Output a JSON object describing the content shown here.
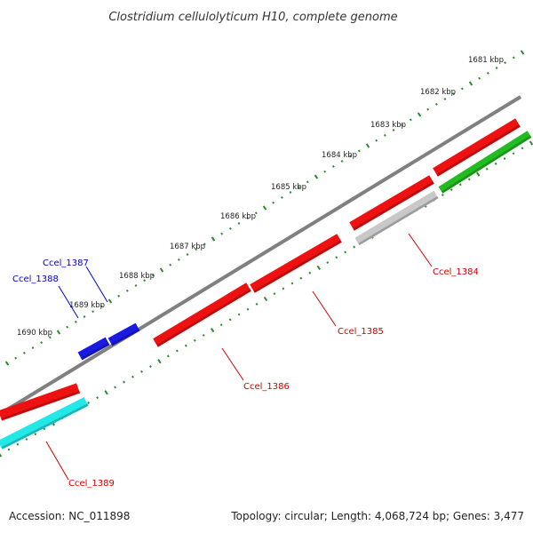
{
  "title": "Clostridium cellulolyticum H10, complete genome",
  "accession": "Accession: NC_011898",
  "summary": "Topology: circular; Length: 4,068,724 bp; Genes: 3,477",
  "colors": {
    "backbone": "#808080",
    "dots": "#2e8b2e",
    "red_gene": "#ee1111",
    "blue_gene": "#1a1ae0",
    "cyan_gene": "#22e8e8",
    "green_gene": "#22bb22",
    "gray_gene": "#c8c8c8",
    "red_label": "#cc0000",
    "blue_label": "#0000cc"
  },
  "ticks": [
    {
      "label": "1681 kbp"
    },
    {
      "label": "1682 kbp"
    },
    {
      "label": "1683 kbp"
    },
    {
      "label": "1684 kbp"
    },
    {
      "label": "1685 kbp"
    },
    {
      "label": "1686 kbp"
    },
    {
      "label": "1687 kbp"
    },
    {
      "label": "1688 kbp"
    },
    {
      "label": "1689 kbp"
    },
    {
      "label": "1690 kbp"
    }
  ],
  "gene_labels": [
    {
      "name": "Ccel_1384",
      "color": "red"
    },
    {
      "name": "Ccel_1385",
      "color": "red"
    },
    {
      "name": "Ccel_1386",
      "color": "red"
    },
    {
      "name": "Ccel_1387",
      "color": "blue"
    },
    {
      "name": "Ccel_1388",
      "color": "blue"
    },
    {
      "name": "Ccel_1389",
      "color": "red"
    }
  ]
}
